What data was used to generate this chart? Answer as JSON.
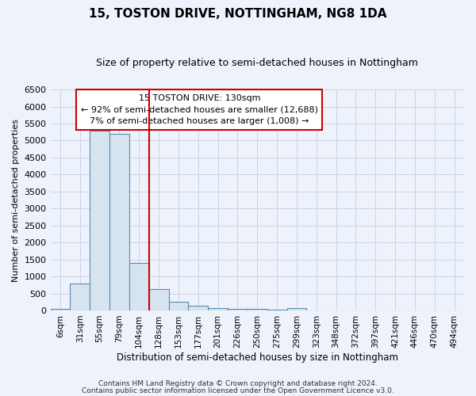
{
  "title": "15, TOSTON DRIVE, NOTTINGHAM, NG8 1DA",
  "subtitle": "Size of property relative to semi-detached houses in Nottingham",
  "xlabel": "Distribution of semi-detached houses by size in Nottingham",
  "ylabel": "Number of semi-detached properties",
  "categories": [
    "6sqm",
    "31sqm",
    "55sqm",
    "79sqm",
    "104sqm",
    "128sqm",
    "153sqm",
    "177sqm",
    "201sqm",
    "226sqm",
    "250sqm",
    "275sqm",
    "299sqm",
    "323sqm",
    "348sqm",
    "372sqm",
    "397sqm",
    "421sqm",
    "446sqm",
    "470sqm",
    "494sqm"
  ],
  "values": [
    50,
    780,
    5300,
    5200,
    1400,
    620,
    250,
    130,
    80,
    50,
    50,
    30,
    60,
    0,
    0,
    0,
    0,
    0,
    0,
    0,
    0
  ],
  "bar_color": "#d6e4f0",
  "bar_edge_color": "#5a8ab0",
  "vline_color": "#cc0000",
  "vline_x_index": 5,
  "ylim": [
    0,
    6500
  ],
  "yticks": [
    0,
    500,
    1000,
    1500,
    2000,
    2500,
    3000,
    3500,
    4000,
    4500,
    5000,
    5500,
    6000,
    6500
  ],
  "annotation_title": "15 TOSTON DRIVE: 130sqm",
  "annotation_line1": "← 92% of semi-detached houses are smaller (12,688)",
  "annotation_line2": "7% of semi-detached houses are larger (1,008) →",
  "annotation_box_color": "#ffffff",
  "annotation_box_edge": "#cc0000",
  "grid_color": "#c8d4e8",
  "background_color": "#eef2fb",
  "footer1": "Contains HM Land Registry data © Crown copyright and database right 2024.",
  "footer2": "Contains public sector information licensed under the Open Government Licence v3.0."
}
